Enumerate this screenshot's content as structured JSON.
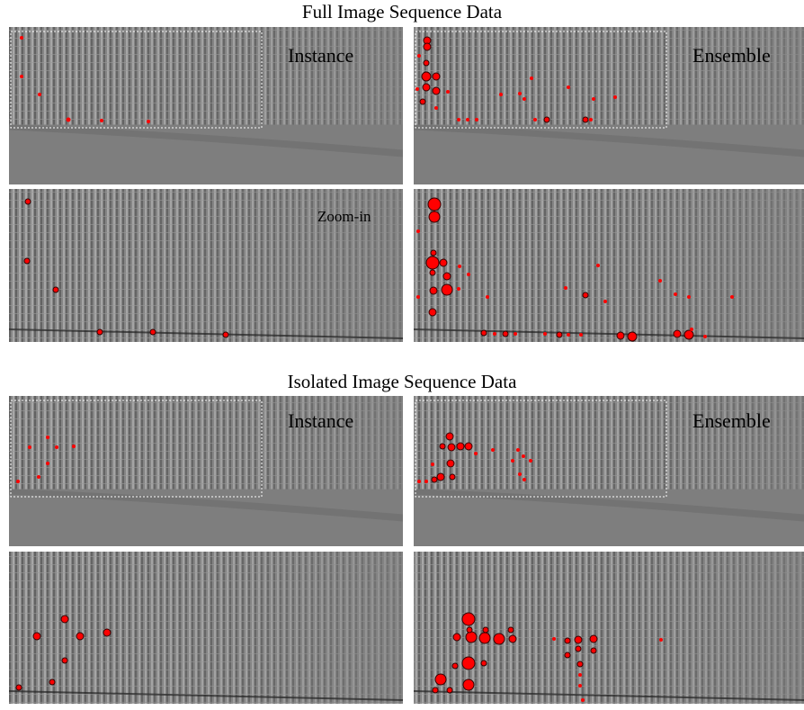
{
  "sections": [
    {
      "title": "Full Image Sequence Data",
      "labels": {
        "instance": "Instance",
        "ensemble": "Ensemble",
        "zoom": "Zoom-in"
      }
    },
    {
      "title": "Isolated Image Sequence Data",
      "labels": {
        "instance": "Instance",
        "ensemble": "Ensemble"
      }
    }
  ]
}
